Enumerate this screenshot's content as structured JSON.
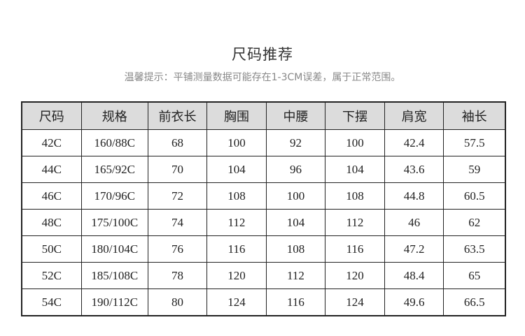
{
  "title": "尺码推荐",
  "tip": "温馨提示：平铺测量数据可能存在1-3CM误差，属于正常范围。",
  "table": {
    "headers": [
      "尺码",
      "规格",
      "前衣长",
      "胸围",
      "中腰",
      "下摆",
      "肩宽",
      "袖长"
    ],
    "rows": [
      [
        "42C",
        "160/88C",
        "68",
        "100",
        "92",
        "100",
        "42.4",
        "57.5"
      ],
      [
        "44C",
        "165/92C",
        "70",
        "104",
        "96",
        "104",
        "43.6",
        "59"
      ],
      [
        "46C",
        "170/96C",
        "72",
        "108",
        "100",
        "108",
        "44.8",
        "60.5"
      ],
      [
        "48C",
        "175/100C",
        "74",
        "112",
        "104",
        "112",
        "46",
        "62"
      ],
      [
        "50C",
        "180/104C",
        "76",
        "116",
        "108",
        "116",
        "47.2",
        "63.5"
      ],
      [
        "52C",
        "185/108C",
        "78",
        "120",
        "112",
        "120",
        "48.4",
        "65"
      ],
      [
        "54C",
        "190/112C",
        "80",
        "124",
        "116",
        "124",
        "49.6",
        "66.5"
      ]
    ]
  }
}
